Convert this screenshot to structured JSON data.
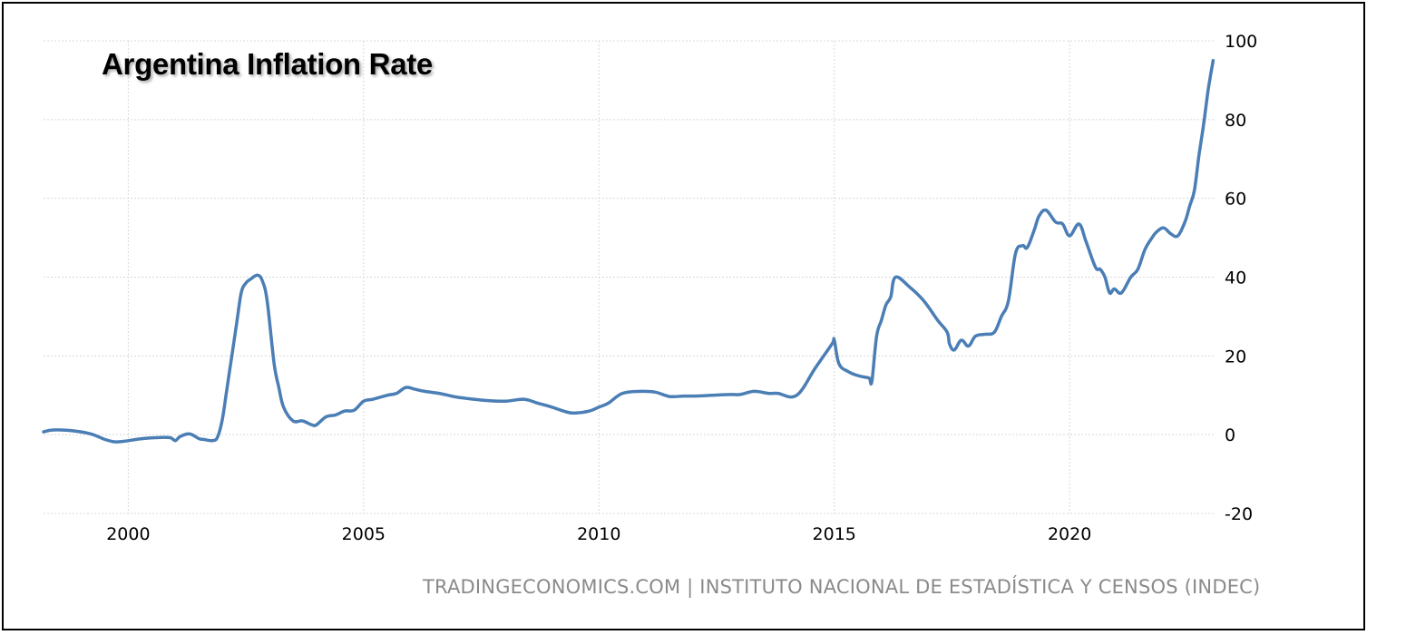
{
  "chart_data": {
    "type": "line",
    "title": "Argentina Inflation Rate",
    "source": "TRADINGECONOMICS.COM | INSTITUTO NACIONAL DE ESTADÍSTICA Y CENSOS (INDEC)",
    "xlabel": "",
    "ylabel": "",
    "xlim": [
      1998.2,
      2023.1
    ],
    "ylim": [
      -20,
      100
    ],
    "x_ticks": [
      "2000",
      "2005",
      "2010",
      "2015",
      "2020"
    ],
    "y_ticks": [
      "100",
      "80",
      "60",
      "40",
      "20",
      "0",
      "-20"
    ],
    "grid": true,
    "y_axis_position": "right",
    "line_color": "#4a7eb5",
    "series": [
      {
        "x": [
          1998.2,
          1998.4,
          1998.8,
          1999.2,
          1999.5,
          1999.7,
          1999.9,
          2000.3,
          2000.7,
          2000.9,
          2001.0,
          2001.1,
          2001.3,
          2001.5,
          2001.6,
          2001.8,
          2001.9,
          2002.0,
          2002.1,
          2002.2,
          2002.3,
          2002.4,
          2002.5,
          2002.6,
          2002.75,
          2002.85,
          2002.95,
          2003.1,
          2003.2,
          2003.3,
          2003.5,
          2003.7,
          2003.9,
          2004.0,
          2004.2,
          2004.4,
          2004.6,
          2004.8,
          2005.0,
          2005.2,
          2005.5,
          2005.7,
          2005.9,
          2006.1,
          2006.3,
          2006.6,
          2006.8,
          2007.0,
          2007.5,
          2008.0,
          2008.4,
          2008.7,
          2009.0,
          2009.3,
          2009.5,
          2009.8,
          2010.0,
          2010.2,
          2010.5,
          2010.9,
          2011.2,
          2011.5,
          2011.8,
          2012.0,
          2012.4,
          2012.8,
          2013.0,
          2013.3,
          2013.6,
          2013.8,
          2014.2,
          2014.6,
          2014.95,
          2015.0,
          2015.1,
          2015.3,
          2015.5,
          2015.7,
          2015.75,
          2015.8,
          2015.9,
          2016.0,
          2016.1,
          2016.2,
          2016.3,
          2016.6,
          2016.9,
          2017.2,
          2017.4,
          2017.45,
          2017.55,
          2017.7,
          2017.85,
          2018.0,
          2018.2,
          2018.4,
          2018.55,
          2018.7,
          2018.85,
          2019.0,
          2019.1,
          2019.25,
          2019.35,
          2019.5,
          2019.7,
          2019.85,
          2020.0,
          2020.2,
          2020.35,
          2020.55,
          2020.65,
          2020.75,
          2020.85,
          2020.95,
          2021.1,
          2021.3,
          2021.45,
          2021.6,
          2021.75,
          2021.85,
          2022.0,
          2022.15,
          2022.3,
          2022.45,
          2022.55,
          2022.65,
          2022.75,
          2022.85,
          2022.95,
          2023.05
        ],
        "values": [
          0.7,
          1.2,
          1.0,
          0.2,
          -1.2,
          -1.8,
          -1.7,
          -1.0,
          -0.7,
          -0.8,
          -1.5,
          -0.5,
          0.2,
          -1.0,
          -1.2,
          -1.5,
          -0.5,
          4.0,
          12.0,
          20.0,
          28.0,
          36.0,
          38.5,
          39.5,
          40.5,
          39.0,
          34.0,
          18.0,
          12.0,
          7.0,
          3.5,
          3.5,
          2.5,
          2.5,
          4.5,
          5.0,
          6.0,
          6.2,
          8.5,
          9.0,
          10.0,
          10.5,
          12.0,
          11.5,
          11.0,
          10.5,
          10.0,
          9.5,
          8.8,
          8.5,
          9.0,
          8.0,
          7.0,
          5.8,
          5.5,
          6.0,
          7.0,
          8.0,
          10.5,
          11.0,
          10.8,
          9.7,
          9.8,
          9.8,
          10.0,
          10.2,
          10.2,
          11.0,
          10.5,
          10.5,
          10.0,
          17.0,
          23.0,
          24.0,
          18.0,
          16.0,
          15.0,
          14.5,
          14.3,
          13.6,
          25.0,
          29.0,
          33.0,
          35.0,
          40.0,
          37.5,
          34.0,
          29.0,
          26.0,
          23.0,
          21.5,
          24.0,
          22.5,
          25.0,
          25.5,
          26.0,
          30.0,
          34.0,
          46.0,
          48.0,
          47.5,
          52.0,
          55.5,
          57.0,
          54.0,
          53.5,
          50.5,
          53.5,
          49.0,
          42.5,
          42.0,
          40.0,
          36.0,
          37.0,
          36.0,
          40.0,
          42.0,
          47.0,
          50.0,
          51.5,
          52.5,
          51.0,
          50.5,
          54.0,
          58.0,
          62.0,
          71.0,
          79.0,
          88.0,
          95.0
        ]
      }
    ]
  }
}
